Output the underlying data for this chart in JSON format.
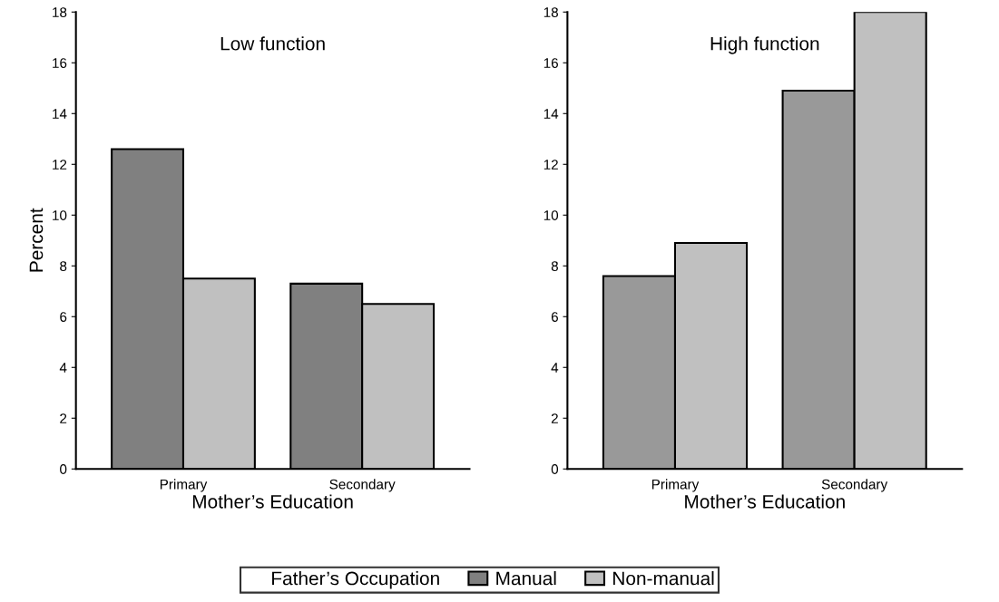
{
  "chart_data": [
    {
      "type": "bar",
      "title": "Low function",
      "categories": [
        "Primary",
        "Secondary"
      ],
      "xlabel": "Mother’s Education",
      "ylabel": "Percent",
      "ylim": [
        0,
        18
      ],
      "yticks": [
        0,
        2,
        4,
        6,
        8,
        10,
        12,
        14,
        16,
        18
      ],
      "grid": false,
      "legend": "bottom",
      "legend_title": "Father’s Occupation",
      "series": [
        {
          "name": "Manual",
          "color": "#808080",
          "values": [
            12.6,
            7.3
          ]
        },
        {
          "name": "Non-manual",
          "color": "#c0c0c0",
          "values": [
            7.5,
            6.5
          ]
        }
      ]
    },
    {
      "type": "bar",
      "title": "High function",
      "categories": [
        "Primary",
        "Secondary"
      ],
      "xlabel": "Mother’s Education",
      "ylim": [
        0,
        18
      ],
      "yticks": [
        0,
        2,
        4,
        6,
        8,
        10,
        12,
        14,
        16,
        18
      ],
      "grid": false,
      "series": [
        {
          "color": "#999999",
          "values": [
            7.6,
            14.9
          ]
        },
        {
          "color": "#c0c0c0",
          "values": [
            8.9,
            18.0
          ]
        }
      ]
    }
  ]
}
